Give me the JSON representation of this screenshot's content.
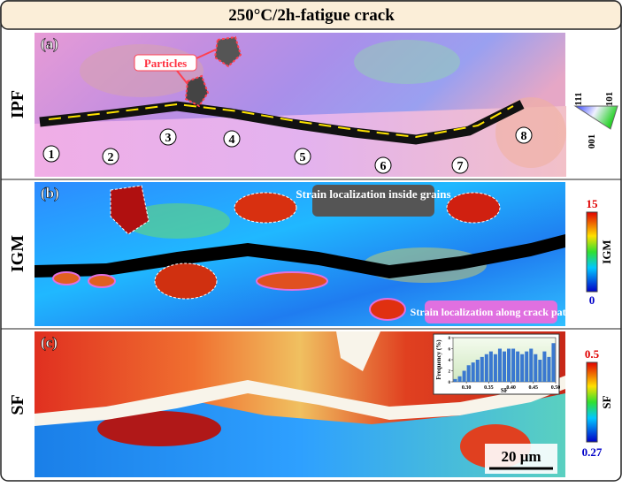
{
  "title": "250°C/2h-fatigue crack",
  "panels": [
    {
      "label": "(a)",
      "row_label": "IPF",
      "annotations": [
        "Particles"
      ],
      "grain_numbers": [
        "1",
        "2",
        "3",
        "4",
        "5",
        "6",
        "7",
        "8"
      ],
      "legend": {
        "top_left": "111",
        "top_right": "101",
        "bottom": "001"
      }
    },
    {
      "label": "(b)",
      "row_label": "IGM",
      "annotations": [
        "Strain localization inside grains",
        "Strain localization along crack path"
      ],
      "legend": {
        "max": "15",
        "min": "0",
        "title": "IGM"
      }
    },
    {
      "label": "(c)",
      "row_label": "SF",
      "scale_bar": "20 μm",
      "legend": {
        "max": "0.5",
        "min": "0.27",
        "title": "SF"
      },
      "inset": {
        "type": "histogram",
        "x_label": "SF",
        "y_label": "Frequency (%)",
        "bins": [
          0.27,
          0.28,
          0.29,
          0.3,
          0.31,
          0.32,
          0.33,
          0.34,
          0.35,
          0.36,
          0.37,
          0.38,
          0.39,
          0.4,
          0.41,
          0.42,
          0.43,
          0.44,
          0.45,
          0.46,
          0.47,
          0.48,
          0.49,
          0.5
        ],
        "values": [
          0.5,
          1,
          2,
          3,
          3.5,
          4,
          4.5,
          5,
          5.5,
          5,
          6,
          5.5,
          6,
          6,
          5.5,
          5,
          5.5,
          6,
          5,
          4,
          5.5,
          4.5,
          7
        ],
        "xlim": [
          0.27,
          0.5
        ],
        "ylim": [
          0,
          8
        ],
        "xticks": [
          {
            "value": 0.3,
            "label": "0.30"
          },
          0.35,
          {
            "value": 0.4,
            "label": "0.40"
          },
          0.45,
          {
            "value": 0.5,
            "label": "0.50"
          }
        ],
        "yticks": [
          0,
          2,
          4,
          6,
          8
        ]
      }
    }
  ]
}
